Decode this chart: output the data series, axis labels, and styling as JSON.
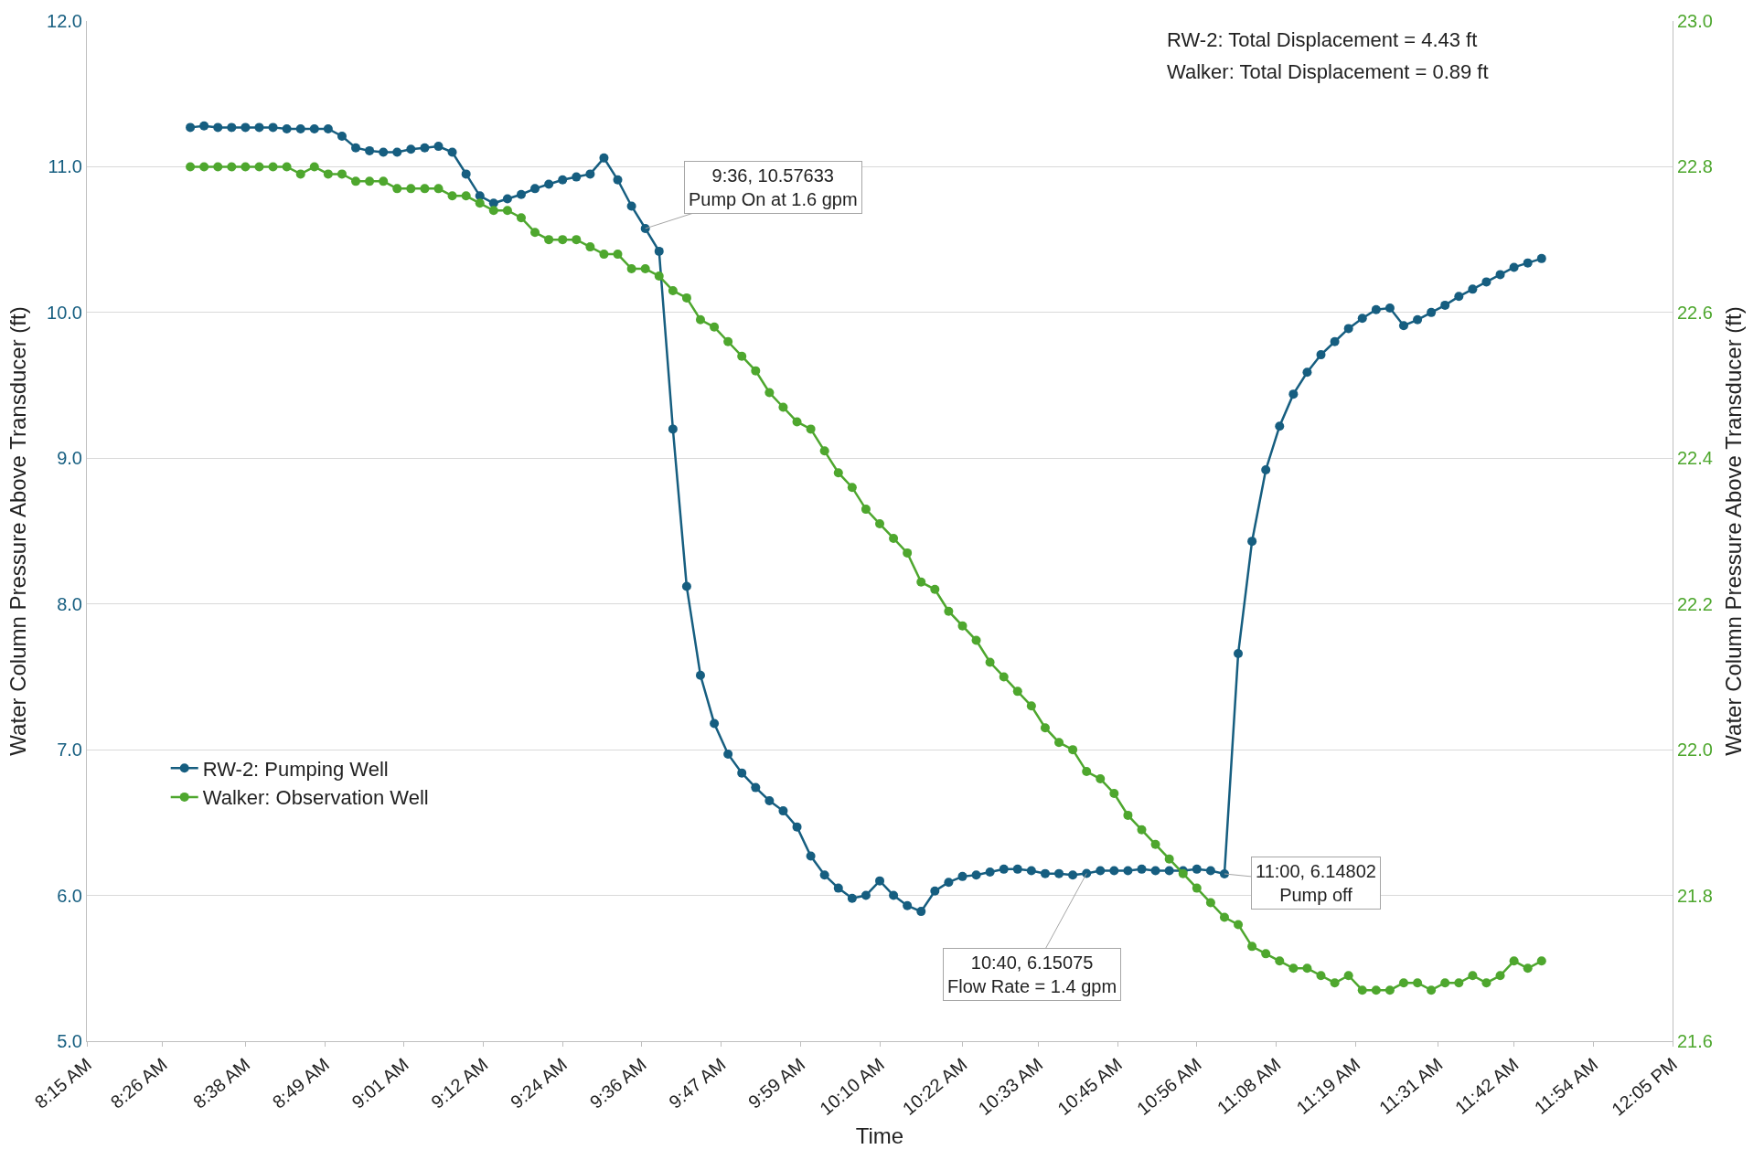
{
  "chart_data": {
    "type": "line",
    "xlabel": "Time",
    "ylabel": "Water Column Pressure Above Transducer (ft)",
    "y2label": "Water Column Pressure Above Transducer (ft)",
    "x": [
      8.5,
      8.5333,
      8.5667,
      8.6,
      8.6333,
      8.6667,
      8.7,
      8.7333,
      8.7667,
      8.8,
      8.8333,
      8.8667,
      8.9,
      8.9333,
      8.9667,
      9,
      9.0333,
      9.0667,
      9.1,
      9.1333,
      9.1667,
      9.2,
      9.2333,
      9.2667,
      9.3,
      9.3333,
      9.3667,
      9.4,
      9.4333,
      9.4667,
      9.5,
      9.5333,
      9.5667,
      9.6,
      9.6333,
      9.6667,
      9.7,
      9.7333,
      9.7667,
      9.8,
      9.8333,
      9.8667,
      9.9,
      9.9333,
      9.9667,
      10,
      10.0333,
      10.0667,
      10.1,
      10.1333,
      10.1667,
      10.2,
      10.2333,
      10.2667,
      10.3,
      10.3333,
      10.3667,
      10.4,
      10.4333,
      10.4667,
      10.5,
      10.5333,
      10.5667,
      10.6,
      10.6333,
      10.6667,
      10.7,
      10.7333,
      10.7667,
      10.8,
      10.8333,
      10.8667,
      10.9,
      10.9333,
      10.9667,
      11,
      11.0333,
      11.0667,
      11.1,
      11.1333,
      11.1667,
      11.2,
      11.2333,
      11.2667,
      11.3,
      11.3333,
      11.3667,
      11.4,
      11.4333,
      11.4667,
      11.5,
      11.5333,
      11.5667,
      11.6,
      11.6333,
      11.6667,
      11.7,
      11.7333,
      11.7667
    ],
    "series": [
      {
        "name": "RW-2: Pumping Well",
        "color": "#165e80",
        "values": [
          11.27,
          11.28,
          11.27,
          11.27,
          11.27,
          11.27,
          11.27,
          11.26,
          11.26,
          11.26,
          11.26,
          11.21,
          11.13,
          11.11,
          11.1,
          11.1,
          11.12,
          11.13,
          11.14,
          11.1,
          10.95,
          10.8,
          10.75,
          10.78,
          10.81,
          10.85,
          10.88,
          10.91,
          10.93,
          10.95,
          11.06,
          10.91,
          10.73,
          10.57633,
          10.42,
          9.2,
          8.12,
          7.51,
          7.18,
          6.97,
          6.84,
          6.74,
          6.65,
          6.58,
          6.47,
          6.27,
          6.14,
          6.05,
          5.98,
          6.0,
          6.1,
          6.0,
          5.93,
          5.89,
          6.03,
          6.09,
          6.13,
          6.14,
          6.16,
          6.18,
          6.18,
          6.17,
          6.15,
          6.15,
          6.14,
          6.15075,
          6.17,
          6.17,
          6.17,
          6.18,
          6.17,
          6.17,
          6.17,
          6.18,
          6.17,
          6.14802,
          7.66,
          8.43,
          8.92,
          9.22,
          9.44,
          9.59,
          9.71,
          9.8,
          9.89,
          9.96,
          10.02,
          10.03,
          9.91,
          9.95,
          10.0,
          10.05,
          10.11,
          10.16,
          10.21,
          10.26,
          10.31,
          10.34,
          10.37
        ]
      },
      {
        "name": "Walker: Observation Well",
        "color": "#4ea72e",
        "axis": "y2",
        "values": [
          22.8,
          22.8,
          22.8,
          22.8,
          22.8,
          22.8,
          22.8,
          22.8,
          22.79,
          22.8,
          22.79,
          22.79,
          22.78,
          22.78,
          22.78,
          22.77,
          22.77,
          22.77,
          22.77,
          22.76,
          22.76,
          22.75,
          22.74,
          22.74,
          22.73,
          22.71,
          22.7,
          22.7,
          22.7,
          22.69,
          22.68,
          22.68,
          22.66,
          22.66,
          22.65,
          22.63,
          22.62,
          22.59,
          22.58,
          22.56,
          22.54,
          22.52,
          22.49,
          22.47,
          22.45,
          22.44,
          22.41,
          22.38,
          22.36,
          22.33,
          22.31,
          22.29,
          22.27,
          22.23,
          22.22,
          22.19,
          22.17,
          22.15,
          22.12,
          22.1,
          22.08,
          22.06,
          22.03,
          22.01,
          22.0,
          21.97,
          21.96,
          21.94,
          21.91,
          21.89,
          21.87,
          21.85,
          21.83,
          21.81,
          21.79,
          21.77,
          21.76,
          21.73,
          21.72,
          21.71,
          21.7,
          21.7,
          21.69,
          21.68,
          21.69,
          21.67,
          21.67,
          21.67,
          21.68,
          21.68,
          21.67,
          21.68,
          21.68,
          21.69,
          21.68,
          21.69,
          21.71,
          21.7,
          21.71
        ]
      }
    ],
    "xlim": [
      8.25,
      12.0833
    ],
    "xticks": [
      {
        "value": 8.25,
        "label": "8:15 AM"
      },
      {
        "value": 8.4333,
        "label": "8:26 AM"
      },
      {
        "value": 8.6333,
        "label": "8:38 AM"
      },
      {
        "value": 8.825,
        "label": "8:49 AM"
      },
      {
        "value": 9.0167,
        "label": "9:01 AM"
      },
      {
        "value": 9.2083,
        "label": "9:12 AM"
      },
      {
        "value": 9.4,
        "label": "9:24 AM"
      },
      {
        "value": 9.5917,
        "label": "9:36 AM"
      },
      {
        "value": 9.7833,
        "label": "9:47 AM"
      },
      {
        "value": 9.975,
        "label": "9:59 AM"
      },
      {
        "value": 10.1667,
        "label": "10:10 AM"
      },
      {
        "value": 10.3667,
        "label": "10:22 AM"
      },
      {
        "value": 10.55,
        "label": "10:33 AM"
      },
      {
        "value": 10.7417,
        "label": "10:45 AM"
      },
      {
        "value": 10.9333,
        "label": "10:56 AM"
      },
      {
        "value": 11.125,
        "label": "11:08 AM"
      },
      {
        "value": 11.3167,
        "label": "11:19 AM"
      },
      {
        "value": 11.5167,
        "label": "11:31 AM"
      },
      {
        "value": 11.7,
        "label": "11:42 AM"
      },
      {
        "value": 11.8917,
        "label": "11:54 AM"
      },
      {
        "value": 12.0833,
        "label": "12:05 PM"
      }
    ],
    "ylim": [
      5,
      12
    ],
    "yticks": [
      {
        "value": 5,
        "label": "5.0"
      },
      {
        "value": 6,
        "label": "6.0"
      },
      {
        "value": 7,
        "label": "7.0"
      },
      {
        "value": 8,
        "label": "8.0"
      },
      {
        "value": 9,
        "label": "9.0"
      },
      {
        "value": 10,
        "label": "10.0"
      },
      {
        "value": 11,
        "label": "11.0"
      },
      {
        "value": 12,
        "label": "12.0"
      }
    ],
    "y2lim": [
      21.6,
      23
    ],
    "y2ticks": [
      {
        "value": 21.6,
        "label": "21.6"
      },
      {
        "value": 21.8,
        "label": "21.8"
      },
      {
        "value": 22,
        "label": "22.0"
      },
      {
        "value": 22.2,
        "label": "22.2"
      },
      {
        "value": 22.4,
        "label": "22.4"
      },
      {
        "value": 22.6,
        "label": "22.6"
      },
      {
        "value": 22.8,
        "label": "22.8"
      },
      {
        "value": 23,
        "label": "23.0"
      }
    ],
    "annotations": [
      {
        "text": "9:36, 10.57633\nPump On at 1.6 gpm",
        "x": 9.6,
        "y": 10.57633
      },
      {
        "text": "10:40, 6.15075\nFlow Rate = 1.4 gpm",
        "x": 10.6667,
        "y": 6.15075
      },
      {
        "text": "11:00, 6.14802\nPump off",
        "x": 11.0,
        "y": 6.14802
      },
      "RW-2: Total Displacement = 4.43 ft",
      "Walker: Total Displacement = 0.89 ft"
    ],
    "grid": "y",
    "legend": "bottom left",
    "marker": "circle",
    "line_style": "solid"
  }
}
